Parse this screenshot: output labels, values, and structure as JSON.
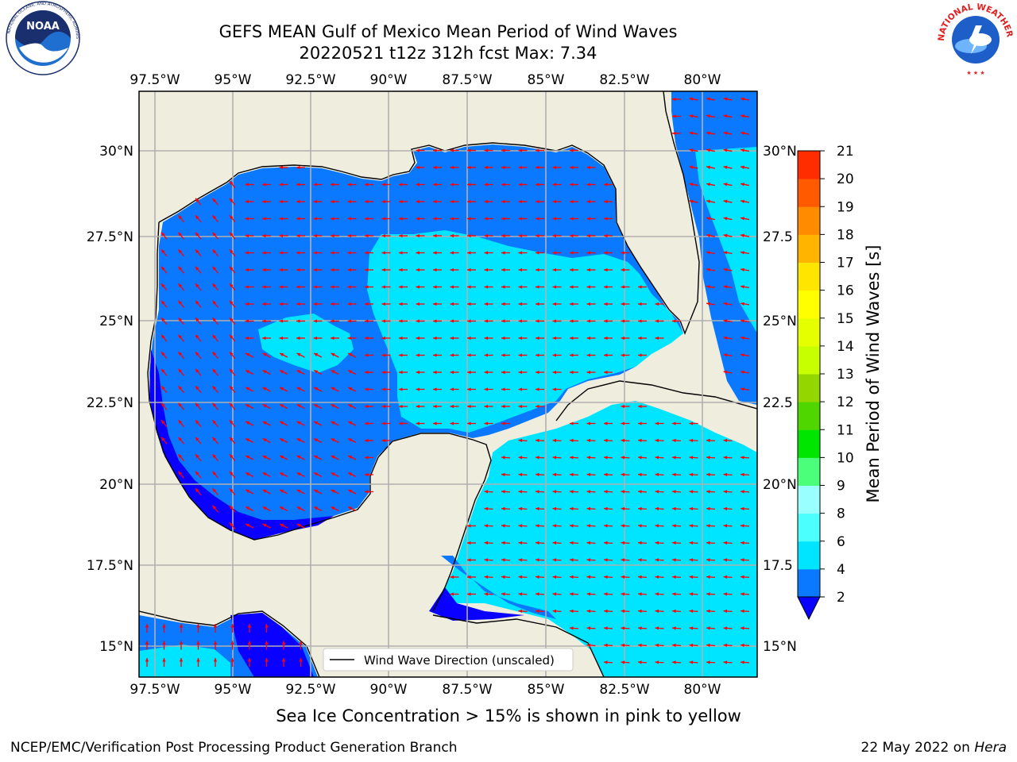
{
  "header": {
    "title_line1": "GEFS MEAN Gulf of Mexico Mean Period of Wind Waves",
    "title_line2": "20220521 t12z 312h fcst   Max: 7.34"
  },
  "logos": {
    "noaa": {
      "icon": "noaa-logo-icon",
      "text": "NOAA"
    },
    "nws": {
      "icon": "nws-logo-icon"
    }
  },
  "map": {
    "lon_labels": [
      "97.5°W",
      "95°W",
      "92.5°W",
      "90°W",
      "87.5°W",
      "85°W",
      "82.5°W",
      "80°W"
    ],
    "lat_labels": [
      "30°N",
      "27.5°N",
      "25°N",
      "22.5°N",
      "20°N",
      "17.5°N",
      "15°N"
    ],
    "lat_labels_right": [
      "30°N",
      "27.5",
      "25°N",
      "22.5",
      "20°N",
      "17.5",
      "15°N"
    ],
    "legend_label": "Wind Wave Direction (unscaled)",
    "arrow_color": "#ff0000",
    "land_color": "#efedde",
    "grid_color": "#b0b0b0"
  },
  "colorbar": {
    "label": "Mean Period of Wind Waves [s]",
    "ticks": [
      "2",
      "4",
      "6",
      "8",
      "9",
      "10",
      "11",
      "12",
      "13",
      "14",
      "15",
      "16",
      "17",
      "18",
      "19",
      "20",
      "21"
    ],
    "colors": [
      "#0a78ff",
      "#00e5ff",
      "#4cffff",
      "#9affff",
      "#4bff7a",
      "#00e600",
      "#4fd600",
      "#93d600",
      "#c8ff00",
      "#e6ff00",
      "#ffff00",
      "#ffe600",
      "#ffb400",
      "#ff8c00",
      "#ff5a00",
      "#ff2d00"
    ],
    "under_color": "#0a00ff"
  },
  "captions": {
    "ice_note": "Sea Ice Concentration > 15% is shown in pink to yellow",
    "footer_left": "NCEP/EMC/Verification Post Processing Product Generation Branch",
    "footer_right_prefix": "22 May 2022 on ",
    "footer_right_host": "Hera"
  }
}
